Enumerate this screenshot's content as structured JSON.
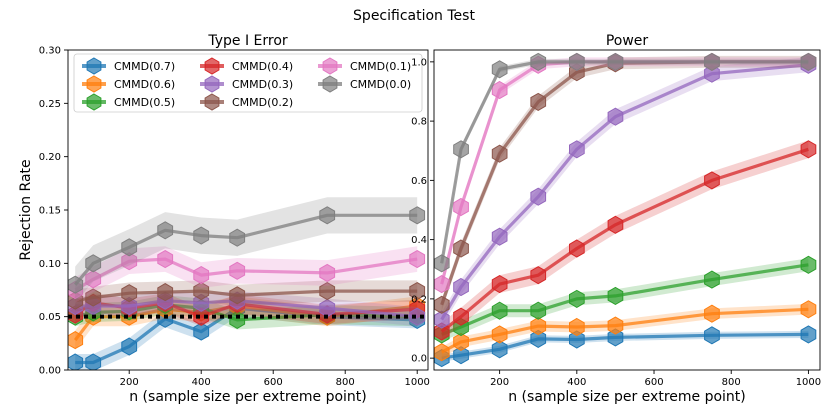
{
  "suptitle": "Specification Test",
  "chart_data": [
    {
      "type": "line",
      "title": "Type I Error",
      "xlabel": "n (sample size per extreme point)",
      "ylabel": "Rejection Rate",
      "xlim": [
        30,
        1030
      ],
      "ylim": [
        0,
        0.3
      ],
      "xticks": [
        200,
        400,
        600,
        800,
        1000
      ],
      "yticks": [
        0,
        0.05,
        0.1,
        0.15,
        0.2,
        0.25,
        0.3
      ],
      "xtick_labels": [
        "200",
        "400",
        "600",
        "800",
        "1000"
      ],
      "ytick_labels": [
        "0.00",
        "0.05",
        "0.10",
        "0.15",
        "0.20",
        "0.25",
        "0.30"
      ],
      "reference_line": 0.05,
      "legend_position": "upper",
      "x": [
        50,
        100,
        200,
        300,
        400,
        500,
        750,
        1000
      ],
      "series": [
        {
          "name": "CMMD(0.7)",
          "color": "#1f77b4",
          "values": [
            0.007,
            0.007,
            0.022,
            0.048,
            0.036,
            0.058,
            0.05,
            0.047
          ],
          "band": 0.008
        },
        {
          "name": "CMMD(0.6)",
          "color": "#ff7f0e",
          "values": [
            0.028,
            0.05,
            0.05,
            0.057,
            0.054,
            0.06,
            0.05,
            0.06
          ],
          "band": 0.009
        },
        {
          "name": "CMMD(0.5)",
          "color": "#2ca02c",
          "values": [
            0.05,
            0.054,
            0.055,
            0.061,
            0.058,
            0.047,
            0.052,
            0.05
          ],
          "band": 0.009
        },
        {
          "name": "CMMD(0.4)",
          "color": "#d62728",
          "values": [
            0.052,
            0.063,
            0.058,
            0.063,
            0.05,
            0.062,
            0.052,
            0.057
          ],
          "band": 0.009
        },
        {
          "name": "CMMD(0.3)",
          "color": "#9467bd",
          "values": [
            0.06,
            0.06,
            0.06,
            0.065,
            0.063,
            0.065,
            0.058,
            0.05
          ],
          "band": 0.009
        },
        {
          "name": "CMMD(0.2)",
          "color": "#8c564b",
          "values": [
            0.065,
            0.068,
            0.072,
            0.073,
            0.074,
            0.07,
            0.074,
            0.074
          ],
          "band": 0.01
        },
        {
          "name": "CMMD(0.1)",
          "color": "#e377c2",
          "values": [
            0.075,
            0.085,
            0.102,
            0.104,
            0.089,
            0.093,
            0.091,
            0.104
          ],
          "band": 0.012
        },
        {
          "name": "CMMD(0.0)",
          "color": "#7f7f7f",
          "values": [
            0.08,
            0.1,
            0.115,
            0.131,
            0.126,
            0.124,
            0.145,
            0.145
          ],
          "band": 0.017
        }
      ]
    },
    {
      "type": "line",
      "title": "Power",
      "xlabel": "n (sample size per extreme point)",
      "ylabel": "",
      "xlim": [
        30,
        1030
      ],
      "ylim": [
        -0.04,
        1.04
      ],
      "xticks": [
        200,
        400,
        600,
        800,
        1000
      ],
      "yticks": [
        0,
        0.2,
        0.4,
        0.6,
        0.8,
        1.0
      ],
      "xtick_labels": [
        "200",
        "400",
        "600",
        "800",
        "1000"
      ],
      "ytick_labels": [
        "0.0",
        "0.2",
        "0.4",
        "0.6",
        "0.8",
        "1.0"
      ],
      "x": [
        50,
        100,
        200,
        300,
        400,
        500,
        750,
        1000
      ],
      "series": [
        {
          "name": "CMMD(0.7)",
          "color": "#1f77b4",
          "values": [
            0.0,
            0.01,
            0.03,
            0.065,
            0.063,
            0.07,
            0.077,
            0.08
          ],
          "band": 0.012
        },
        {
          "name": "CMMD(0.6)",
          "color": "#ff7f0e",
          "values": [
            0.02,
            0.055,
            0.08,
            0.108,
            0.105,
            0.11,
            0.15,
            0.165
          ],
          "band": 0.018
        },
        {
          "name": "CMMD(0.5)",
          "color": "#2ca02c",
          "values": [
            0.08,
            0.105,
            0.16,
            0.16,
            0.2,
            0.21,
            0.265,
            0.315
          ],
          "band": 0.022
        },
        {
          "name": "CMMD(0.4)",
          "color": "#d62728",
          "values": [
            0.09,
            0.14,
            0.25,
            0.28,
            0.37,
            0.45,
            0.6,
            0.705
          ],
          "band": 0.03
        },
        {
          "name": "CMMD(0.3)",
          "color": "#9467bd",
          "values": [
            0.13,
            0.24,
            0.41,
            0.545,
            0.705,
            0.815,
            0.96,
            0.99
          ],
          "band": 0.025
        },
        {
          "name": "CMMD(0.2)",
          "color": "#8c564b",
          "values": [
            0.18,
            0.37,
            0.69,
            0.865,
            0.965,
            0.995,
            1.0,
            1.0
          ],
          "band": 0.02
        },
        {
          "name": "CMMD(0.1)",
          "color": "#e377c2",
          "values": [
            0.25,
            0.51,
            0.905,
            0.99,
            1.0,
            1.0,
            1.0,
            1.0
          ],
          "band": 0.015
        },
        {
          "name": "CMMD(0.0)",
          "color": "#7f7f7f",
          "values": [
            0.32,
            0.705,
            0.975,
            1.0,
            1.0,
            1.0,
            1.0,
            1.0
          ],
          "band": 0.01
        }
      ]
    }
  ]
}
